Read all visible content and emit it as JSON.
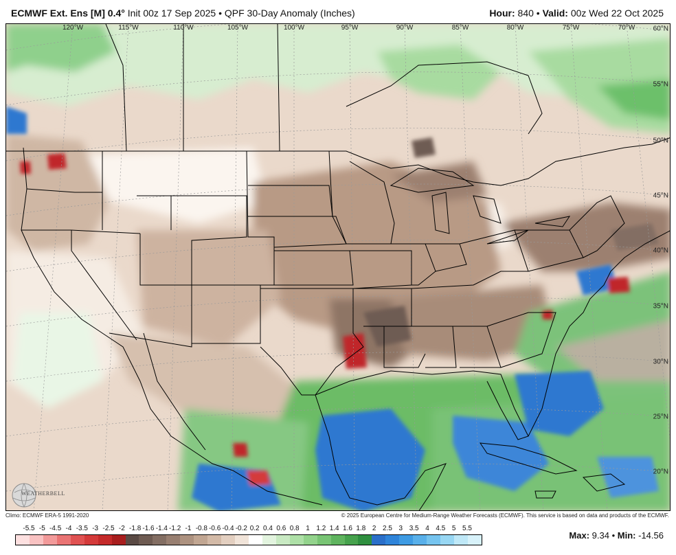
{
  "header": {
    "model": "ECMWF Ext. Ens [M]",
    "resolution": "0.4",
    "degree_symbol": "°",
    "init": "Init 00z 17 Sep 2025",
    "separator": "•",
    "product": "QPF 30-Day Anomaly (Inches)",
    "hour_label": "Hour:",
    "hour_value": "840",
    "valid_label": "Valid:",
    "valid_value": "00z Wed 22 Oct 2025"
  },
  "map": {
    "longitude_labels": [
      "120°W",
      "115°W",
      "110°W",
      "105°W",
      "100°W",
      "95°W",
      "90°W",
      "85°W",
      "80°W",
      "75°W",
      "70°W"
    ],
    "latitude_labels": [
      "60°N",
      "55°N",
      "50°N",
      "45°N",
      "40°N",
      "35°N",
      "30°N",
      "25°N",
      "20°N"
    ],
    "logo_text": "WEATHERBELL",
    "colors": {
      "dry_strong": "#7a6458",
      "dry": "#c9ae9b",
      "dry_light": "#e8d6c8",
      "neutral": "#ffffff",
      "wet_light": "#b5e0b0",
      "wet": "#5bb65e",
      "wet_strong": "#2e7d3a",
      "very_wet": "#2f78d0",
      "extreme_dry": "#c0262b",
      "borders": "#000000"
    }
  },
  "footer": {
    "climo": "Climo: ECMWF ERA-5 1991-2020",
    "copyright": "© 2025 European Centre for Medium-Range Weather Forecasts (ECMWF). This service is based on data and products of the ECMWF."
  },
  "legend": {
    "labels": [
      "-5.5",
      "-5",
      "-4.5",
      "-4",
      "-3.5",
      "-3",
      "-2.5",
      "-2",
      "-1.8",
      "-1.6",
      "-1.4",
      "-1.2",
      "-1",
      "-0.8",
      "-0.6",
      "-0.4",
      "-0.2",
      "0.2",
      "0.4",
      "0.6",
      "0.8",
      "1",
      "1.2",
      "1.4",
      "1.6",
      "1.8",
      "2",
      "2.5",
      "3",
      "3.5",
      "4",
      "4.5",
      "5",
      "5.5"
    ],
    "colors": [
      "#fde0e0",
      "#f9c2c2",
      "#f29a9a",
      "#ea7474",
      "#e05252",
      "#d43a3a",
      "#c42a2a",
      "#a81e1e",
      "#5a4a44",
      "#6e5b52",
      "#836e63",
      "#987f71",
      "#ad9280",
      "#c1a692",
      "#d3baa7",
      "#e3cfc0",
      "#f1e4d9",
      "#ffffff",
      "#e3f4df",
      "#c9eac3",
      "#aee0a7",
      "#93d38c",
      "#78c474",
      "#5fb45f",
      "#46a24d",
      "#2f8f3f",
      "#2a6fc9",
      "#2f84d9",
      "#3e9be3",
      "#59b0ea",
      "#76c4ef",
      "#98d7f3",
      "#bfe8f7",
      "#d8f2fa"
    ]
  },
  "maxmin": {
    "max_label": "Max:",
    "max_value": "9.34",
    "separator": "•",
    "min_label": "Min:",
    "min_value": "-14.56"
  }
}
